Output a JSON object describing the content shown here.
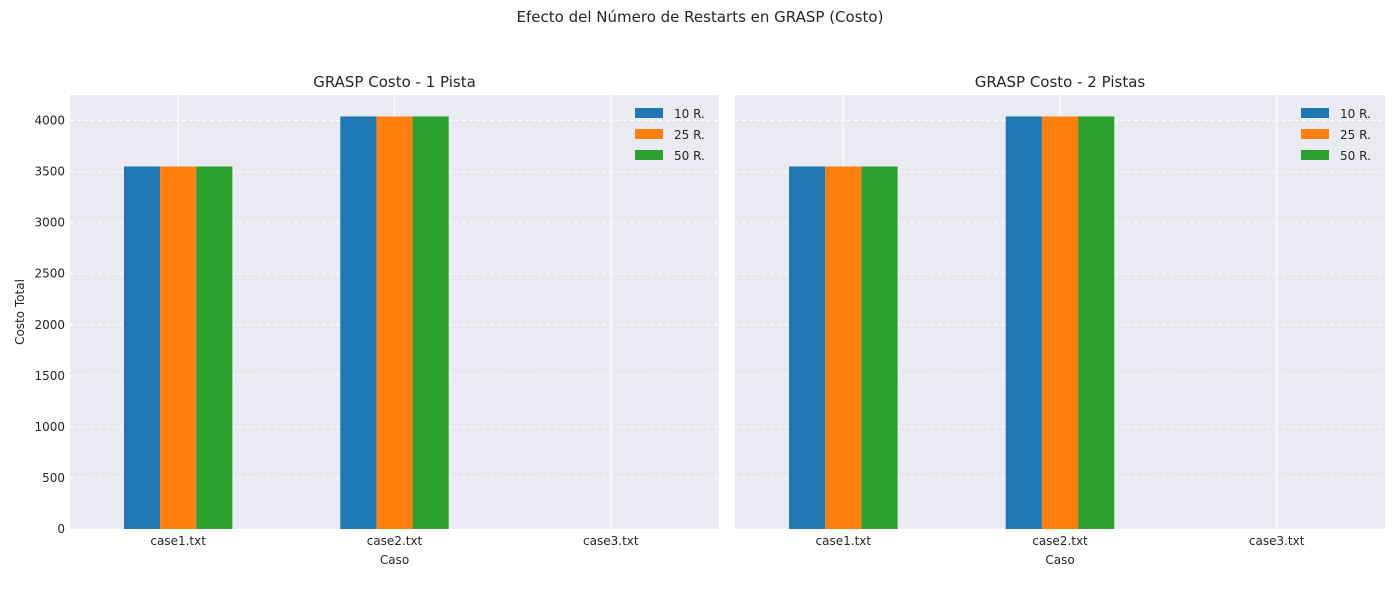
{
  "figure": {
    "suptitle": "Efecto del Número de Restarts en GRASP (Costo)"
  },
  "colors": {
    "background": "#eaeaf2",
    "grid": "#ffffff",
    "series": [
      "#1f77b4",
      "#ff7f0e",
      "#2ca02c"
    ]
  },
  "chart_data": [
    {
      "type": "bar",
      "title": "GRASP Costo - 1 Pista",
      "xlabel": "Caso",
      "ylabel": "Costo Total",
      "categories": [
        "case1.txt",
        "case2.txt",
        "case3.txt"
      ],
      "series": [
        {
          "name": "10 R.",
          "values": [
            3550,
            4040,
            null
          ]
        },
        {
          "name": "25 R.",
          "values": [
            3550,
            4040,
            null
          ]
        },
        {
          "name": "50 R.",
          "values": [
            3550,
            4040,
            null
          ]
        }
      ],
      "ylim": [
        0,
        4250
      ],
      "yticks": [
        0,
        500,
        1000,
        1500,
        2000,
        2500,
        3000,
        3500,
        4000
      ],
      "grid": true,
      "legend": "top-right"
    },
    {
      "type": "bar",
      "title": "GRASP Costo - 2 Pistas",
      "xlabel": "Caso",
      "ylabel": "",
      "categories": [
        "case1.txt",
        "case2.txt",
        "case3.txt"
      ],
      "series": [
        {
          "name": "10 R.",
          "values": [
            3550,
            4040,
            null
          ]
        },
        {
          "name": "25 R.",
          "values": [
            3550,
            4040,
            null
          ]
        },
        {
          "name": "50 R.",
          "values": [
            3550,
            4040,
            null
          ]
        }
      ],
      "ylim": [
        0,
        4250
      ],
      "yticks": [],
      "grid": true,
      "legend": "top-right"
    }
  ]
}
